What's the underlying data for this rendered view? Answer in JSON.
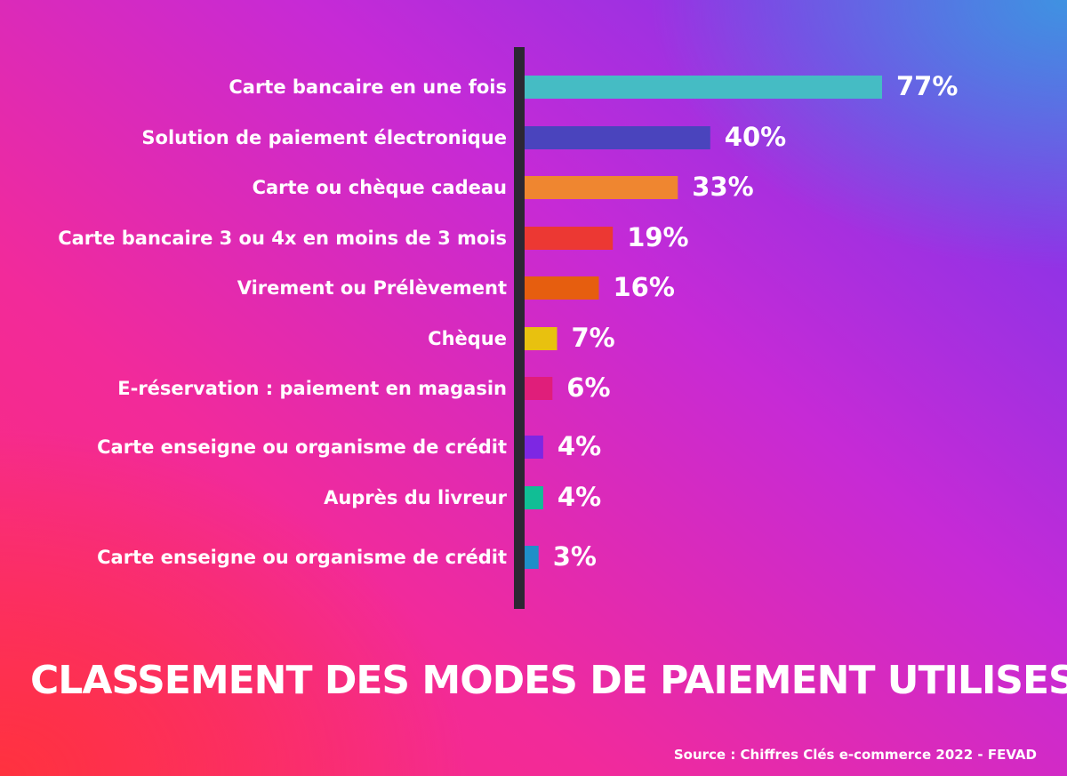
{
  "chart_data": {
    "type": "bar",
    "orientation": "horizontal",
    "title": "CLASSEMENT DES MODES DE PAIEMENT UTILISES",
    "source": "Source : Chiffres Clés e-commerce 2022 - FEVAD",
    "categories": [
      "Carte bancaire en une fois",
      "Solution de paiement électronique",
      "Carte ou chèque cadeau",
      "Carte bancaire 3 ou 4x en moins de 3 mois",
      "Virement ou Prélèvement",
      "Chèque",
      "E-réservation : paiement en magasin",
      "Carte enseigne ou organisme de crédit",
      "Auprès du livreur",
      "Carte enseigne ou organisme de crédit"
    ],
    "values": [
      77,
      40,
      33,
      19,
      16,
      7,
      6,
      4,
      4,
      3
    ],
    "value_labels": [
      "77%",
      "40%",
      "33%",
      "19%",
      "16%",
      "7%",
      "6%",
      "4%",
      "4%",
      "3%"
    ],
    "colors": [
      "#45bcc4",
      "#4a44bd",
      "#ef8630",
      "#ec3833",
      "#e65e0f",
      "#e8c10f",
      "#e01e7a",
      "#7d27e3",
      "#11be95",
      "#1f8fc8"
    ],
    "xlim": [
      0,
      77
    ],
    "grid": false,
    "legend": "none"
  }
}
